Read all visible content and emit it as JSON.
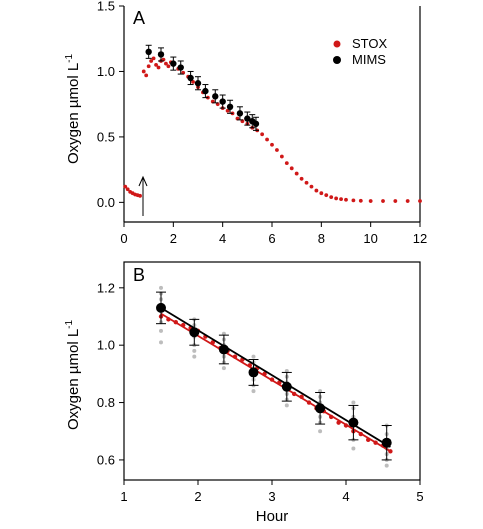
{
  "chart_data": [
    {
      "panel": "A",
      "type": "scatter",
      "xlabel": "",
      "ylabel": "Oxygen  µmol L-1",
      "xlim": [
        0,
        12
      ],
      "ylim": [
        -0.15,
        1.5
      ],
      "xticks": [
        "0",
        "2",
        "4",
        "6",
        "8",
        "10",
        "12"
      ],
      "yticks": [
        "0.0",
        "0.5",
        "1.0",
        "1.5"
      ],
      "legend_position": "top-right",
      "annotation": "arrow at x = 0.7",
      "series": [
        {
          "name": "STOX",
          "color": "#d01818",
          "x": [
            0.05,
            0.15,
            0.25,
            0.35,
            0.45,
            0.55,
            0.65,
            0.8,
            0.9,
            1.0,
            1.1,
            1.2,
            1.3,
            1.4,
            1.5,
            1.6,
            1.7,
            1.8,
            1.9,
            2.0,
            2.2,
            2.4,
            2.6,
            2.8,
            3.0,
            3.2,
            3.4,
            3.6,
            3.8,
            4.0,
            4.2,
            4.4,
            4.6,
            4.8,
            5.0,
            5.2,
            5.4,
            5.6,
            5.8,
            6.0,
            6.2,
            6.4,
            6.6,
            6.8,
            7.0,
            7.2,
            7.4,
            7.6,
            7.8,
            8.0,
            8.2,
            8.4,
            8.6,
            8.8,
            9.0,
            9.3,
            9.6,
            10.0,
            10.5,
            11.0,
            11.5,
            12.0
          ],
          "y": [
            0.12,
            0.1,
            0.08,
            0.07,
            0.06,
            0.055,
            0.05,
            1.0,
            0.97,
            1.04,
            1.08,
            1.1,
            1.05,
            1.03,
            1.08,
            1.09,
            1.06,
            1.04,
            1.07,
            1.05,
            1.02,
            0.99,
            0.96,
            0.92,
            0.88,
            0.84,
            0.8,
            0.77,
            0.75,
            0.72,
            0.7,
            0.68,
            0.64,
            0.62,
            0.6,
            0.57,
            0.55,
            0.52,
            0.48,
            0.44,
            0.4,
            0.35,
            0.3,
            0.26,
            0.22,
            0.18,
            0.15,
            0.12,
            0.09,
            0.07,
            0.055,
            0.04,
            0.03,
            0.025,
            0.02,
            0.015,
            0.012,
            0.01,
            0.01,
            0.01,
            0.01,
            0.01
          ]
        },
        {
          "name": "MIMS",
          "color": "#000000",
          "x": [
            1.0,
            1.5,
            2.0,
            2.3,
            2.7,
            3.0,
            3.3,
            3.7,
            4.0,
            4.3,
            4.7,
            5.0,
            5.2,
            5.35
          ],
          "y": [
            1.15,
            1.13,
            1.06,
            1.03,
            0.95,
            0.91,
            0.85,
            0.81,
            0.77,
            0.73,
            0.68,
            0.64,
            0.62,
            0.6
          ],
          "err": [
            0.05,
            0.05,
            0.05,
            0.05,
            0.05,
            0.05,
            0.05,
            0.05,
            0.05,
            0.05,
            0.05,
            0.05,
            0.05,
            0.05
          ]
        }
      ]
    },
    {
      "panel": "B",
      "type": "scatter",
      "xlabel": "Hour",
      "ylabel": "Oxygen  µmol L-1",
      "xlim": [
        1,
        5
      ],
      "ylim": [
        0.53,
        1.29
      ],
      "xticks": [
        "1",
        "2",
        "3",
        "4",
        "5"
      ],
      "yticks": [
        "0.6",
        "0.8",
        "1.0",
        "1.2"
      ],
      "series": [
        {
          "name": "STOX",
          "color": "#d01818",
          "x": [
            1.5,
            1.6,
            1.7,
            1.8,
            1.9,
            2.0,
            2.1,
            2.2,
            2.3,
            2.4,
            2.5,
            2.6,
            2.7,
            2.8,
            2.9,
            3.0,
            3.1,
            3.2,
            3.3,
            3.4,
            3.5,
            3.6,
            3.7,
            3.8,
            3.9,
            4.0,
            4.1,
            4.2,
            4.3,
            4.4,
            4.5,
            4.6
          ],
          "y": [
            1.1,
            1.09,
            1.08,
            1.07,
            1.06,
            1.05,
            1.03,
            1.01,
            0.99,
            0.98,
            0.96,
            0.95,
            0.93,
            0.92,
            0.9,
            0.88,
            0.87,
            0.85,
            0.83,
            0.82,
            0.8,
            0.78,
            0.77,
            0.75,
            0.73,
            0.72,
            0.7,
            0.69,
            0.67,
            0.66,
            0.65,
            0.63
          ]
        },
        {
          "name": "MIMS",
          "color": "#000000",
          "x": [
            1.5,
            1.95,
            2.35,
            2.75,
            3.2,
            3.65,
            4.1,
            4.55
          ],
          "y": [
            1.13,
            1.045,
            0.985,
            0.905,
            0.855,
            0.78,
            0.73,
            0.66
          ],
          "err": [
            0.055,
            0.045,
            0.05,
            0.045,
            0.05,
            0.055,
            0.06,
            0.06
          ]
        },
        {
          "name": "MIMS fit",
          "type": "line",
          "color": "#000000",
          "x": [
            1.5,
            4.6
          ],
          "y": [
            1.13,
            0.645
          ]
        },
        {
          "name": "STOX fit",
          "type": "line",
          "color": "#d01818",
          "x": [
            1.5,
            4.6
          ],
          "y": [
            1.11,
            0.63
          ]
        },
        {
          "name": "MIMS replicates",
          "color": "#bdbdbd",
          "x": [
            1.5,
            1.5,
            1.5,
            1.5,
            1.5,
            1.5,
            1.5,
            1.5,
            1.95,
            1.95,
            1.95,
            1.95,
            1.95,
            1.95,
            1.95,
            2.35,
            2.35,
            2.35,
            2.35,
            2.35,
            2.35,
            2.35,
            2.75,
            2.75,
            2.75,
            2.75,
            2.75,
            2.75,
            2.75,
            3.2,
            3.2,
            3.2,
            3.2,
            3.2,
            3.2,
            3.2,
            3.65,
            3.65,
            3.65,
            3.65,
            3.65,
            3.65,
            3.65,
            4.1,
            4.1,
            4.1,
            4.1,
            4.1,
            4.1,
            4.1,
            4.55,
            4.55,
            4.55,
            4.55,
            4.55,
            4.55,
            4.55
          ],
          "y": [
            1.2,
            1.18,
            1.16,
            1.12,
            1.1,
            1.08,
            1.05,
            1.01,
            1.09,
            1.07,
            1.05,
            1.03,
            1.0,
            0.98,
            0.96,
            1.04,
            1.02,
            1.0,
            0.98,
            0.96,
            0.94,
            0.92,
            0.96,
            0.94,
            0.92,
            0.9,
            0.88,
            0.86,
            0.84,
            0.91,
            0.89,
            0.87,
            0.85,
            0.83,
            0.81,
            0.79,
            0.84,
            0.82,
            0.8,
            0.77,
            0.75,
            0.73,
            0.7,
            0.8,
            0.78,
            0.75,
            0.72,
            0.7,
            0.67,
            0.64,
            0.72,
            0.69,
            0.66,
            0.64,
            0.62,
            0.6,
            0.58
          ]
        }
      ]
    }
  ],
  "labels": {
    "panel_a": "A",
    "panel_b": "B",
    "xlabel_b": "Hour",
    "ylabel": "Oxygen  µmol L",
    "ylabel_sup": "-1",
    "legend_stox": "STOX",
    "legend_mims": "MIMS"
  }
}
